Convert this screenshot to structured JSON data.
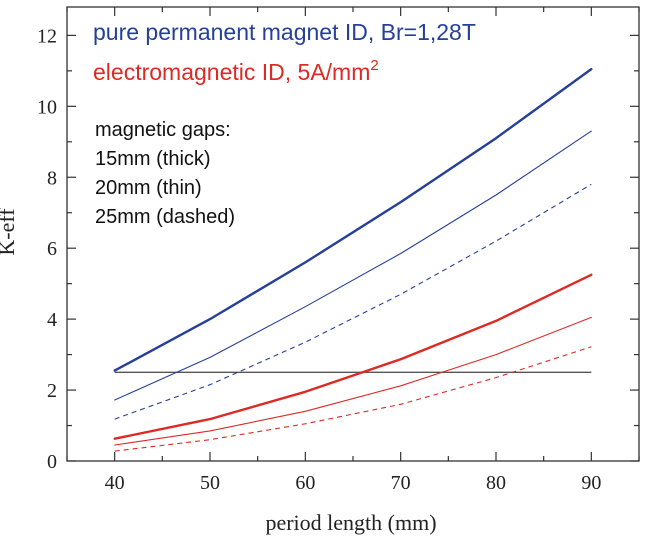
{
  "chart_data": {
    "type": "line",
    "title": "",
    "xlabel": "period length (mm)",
    "ylabel": "K-eff",
    "xlim": [
      35,
      95
    ],
    "ylim": [
      0,
      12.8
    ],
    "x_ticks": [
      40,
      50,
      60,
      70,
      80,
      90
    ],
    "y_ticks": [
      0,
      2,
      4,
      6,
      8,
      10,
      12
    ],
    "grid": false,
    "x": [
      40,
      50,
      60,
      70,
      80,
      90
    ],
    "series": [
      {
        "group": "pm",
        "gap": "15mm",
        "style": "thick",
        "color": "#26409a",
        "values": [
          2.55,
          4.0,
          5.6,
          7.3,
          9.1,
          11.05
        ]
      },
      {
        "group": "pm",
        "gap": "20mm",
        "style": "thin",
        "color": "#26409a",
        "values": [
          1.72,
          2.92,
          4.35,
          5.85,
          7.5,
          9.3
        ]
      },
      {
        "group": "pm",
        "gap": "25mm",
        "style": "dashed",
        "color": "#26409a",
        "values": [
          1.18,
          2.15,
          3.35,
          4.7,
          6.2,
          7.8
        ]
      },
      {
        "group": "em",
        "gap": "15mm",
        "style": "thick",
        "color": "#dd2a25",
        "values": [
          0.63,
          1.18,
          1.95,
          2.87,
          3.95,
          5.25
        ]
      },
      {
        "group": "em",
        "gap": "20mm",
        "style": "thin",
        "color": "#dd2a25",
        "values": [
          0.45,
          0.85,
          1.4,
          2.12,
          3.0,
          4.05
        ]
      },
      {
        "group": "em",
        "gap": "25mm",
        "style": "dashed",
        "color": "#dd2a25",
        "values": [
          0.28,
          0.6,
          1.05,
          1.6,
          2.35,
          3.22
        ]
      }
    ],
    "reference_line": {
      "y": 2.5,
      "x_range": [
        40,
        90
      ],
      "color": "#555555"
    },
    "annotations": {
      "pm_label": "pure permanent magnet ID, Br=1,28T",
      "em_label": "electromagnetic ID, 5A/mm",
      "em_label_sup": "2",
      "gaps_heading": "magnetic gaps:",
      "gap_thick": "15mm (thick)",
      "gap_thin": "20mm (thin)",
      "gap_dashed": "25mm (dashed)"
    },
    "colors": {
      "blue": "#26409a",
      "red": "#dd2a25",
      "axis": "#333333"
    }
  }
}
